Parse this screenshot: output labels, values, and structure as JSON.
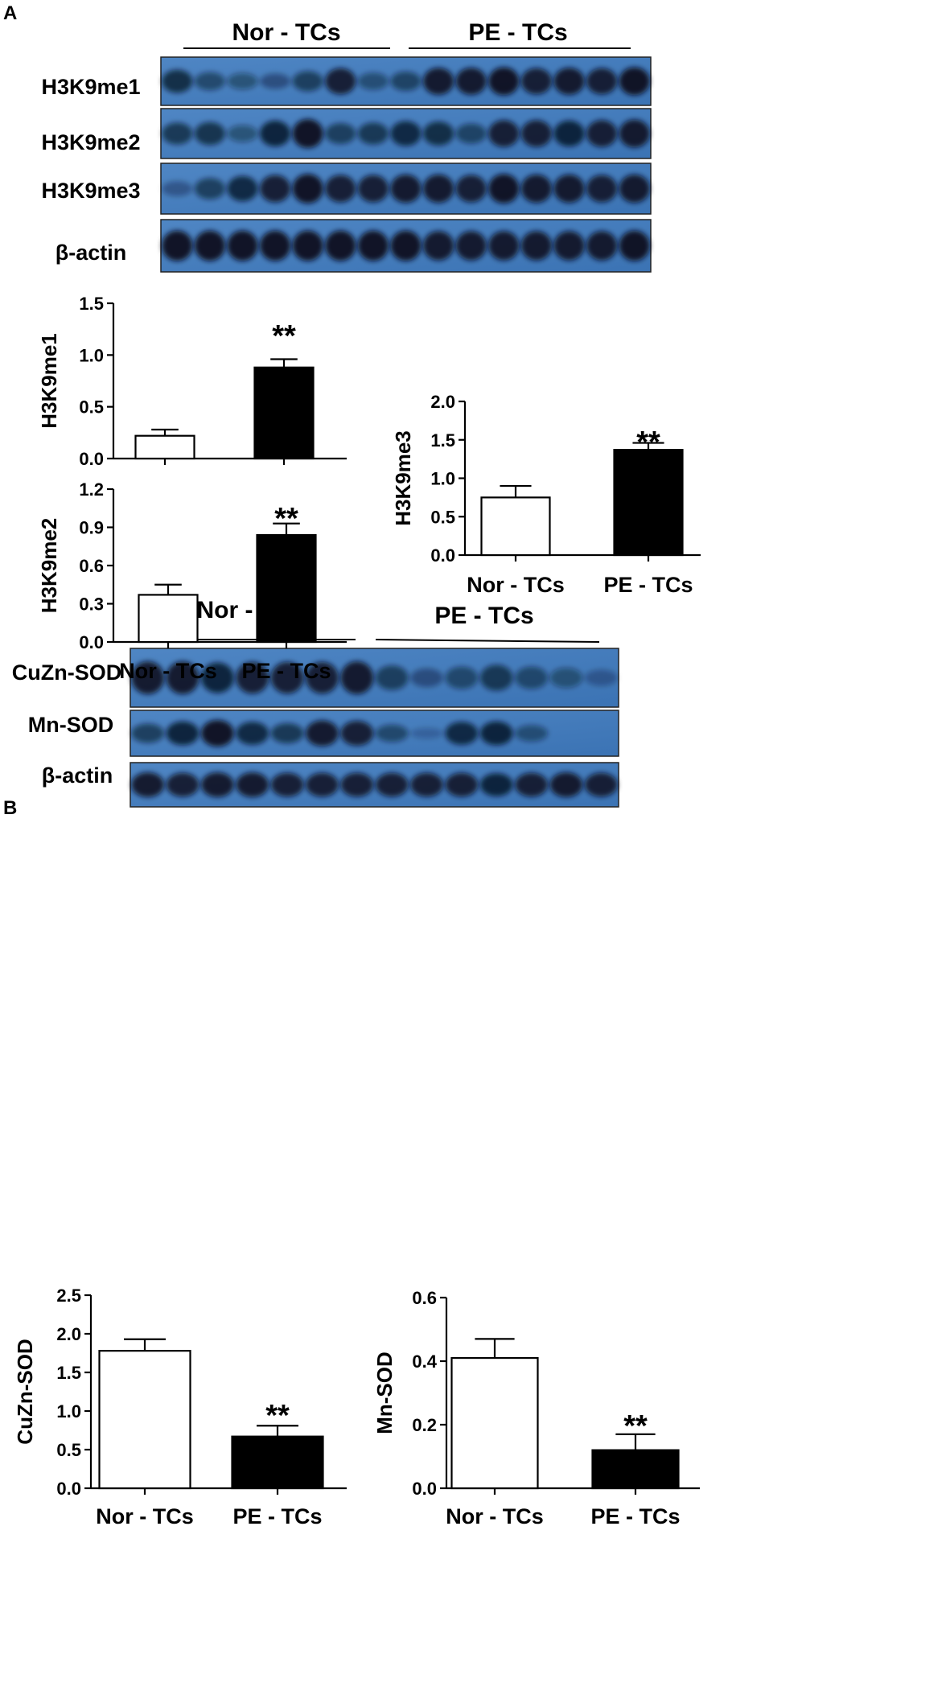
{
  "panels": [
    {
      "id": "A",
      "letter": "A",
      "blot": {
        "groups": [
          "Nor - TCs",
          "PE - TCs"
        ],
        "rows": [
          {
            "label": "H3K9me1",
            "intensity": [
              0.7,
              0.45,
              0.35,
              0.3,
              0.55,
              0.85,
              0.4,
              0.5,
              0.9,
              0.9,
              0.95,
              0.85,
              0.9,
              0.85,
              0.95
            ]
          },
          {
            "label": "H3K9me2",
            "intensity": [
              0.6,
              0.65,
              0.35,
              0.8,
              0.95,
              0.55,
              0.6,
              0.75,
              0.7,
              0.5,
              0.85,
              0.85,
              0.8,
              0.85,
              0.9
            ]
          },
          {
            "label": "H3K9me3",
            "intensity": [
              0.25,
              0.55,
              0.75,
              0.85,
              0.95,
              0.85,
              0.85,
              0.9,
              0.9,
              0.85,
              0.95,
              0.9,
              0.9,
              0.85,
              0.9
            ]
          },
          {
            "label": "β-actin",
            "intensity": [
              0.95,
              0.95,
              0.95,
              0.95,
              0.95,
              0.95,
              0.95,
              0.95,
              0.9,
              0.9,
              0.9,
              0.9,
              0.9,
              0.9,
              0.95
            ]
          }
        ]
      }
    },
    {
      "id": "B",
      "letter": "B",
      "blot": {
        "groups": [
          "Nor - TCs",
          "PE - TCs"
        ],
        "rows": [
          {
            "label": "CuZn-SOD",
            "intensity": [
              0.9,
              0.9,
              0.8,
              0.85,
              0.85,
              0.85,
              0.9,
              0.55,
              0.3,
              0.45,
              0.6,
              0.45,
              0.35,
              0.2
            ]
          },
          {
            "label": "Mn-SOD",
            "intensity": [
              0.55,
              0.8,
              0.95,
              0.75,
              0.6,
              0.9,
              0.85,
              0.45,
              0.1,
              0.75,
              0.8,
              0.4,
              0.0,
              0.0
            ]
          },
          {
            "label": "β-actin",
            "intensity": [
              0.9,
              0.85,
              0.9,
              0.9,
              0.85,
              0.85,
              0.85,
              0.85,
              0.85,
              0.85,
              0.8,
              0.85,
              0.9,
              0.85
            ]
          }
        ]
      }
    }
  ],
  "chart_data": [
    {
      "type": "bar",
      "panel": "A",
      "categories": [
        "Nor - TCs",
        "PE - TCs"
      ],
      "values": [
        0.22,
        0.88
      ],
      "errors": [
        0.06,
        0.08
      ],
      "ylabel": "H3K9me1",
      "ylim": [
        0,
        1.5
      ],
      "yticks": [
        "0.0",
        "0.5",
        "1.0",
        "1.5"
      ],
      "significance": "**",
      "colors": [
        "#ffffff",
        "#000000"
      ]
    },
    {
      "type": "bar",
      "panel": "A",
      "categories": [
        "Nor - TCs",
        "PE - TCs"
      ],
      "values": [
        0.37,
        0.84
      ],
      "errors": [
        0.08,
        0.09
      ],
      "ylabel": "H3K9me2",
      "ylim": [
        0,
        1.2
      ],
      "yticks": [
        "0.0",
        "0.3",
        "0.6",
        "0.9",
        "1.2"
      ],
      "significance": "**",
      "colors": [
        "#ffffff",
        "#000000"
      ]
    },
    {
      "type": "bar",
      "panel": "A",
      "categories": [
        "Nor - TCs",
        "PE - TCs"
      ],
      "values": [
        0.75,
        1.37
      ],
      "errors": [
        0.15,
        0.09
      ],
      "ylabel": "H3K9me3",
      "ylim": [
        0,
        2.0
      ],
      "yticks": [
        "0.0",
        "0.5",
        "1.0",
        "1.5",
        "2.0"
      ],
      "significance": "**",
      "colors": [
        "#ffffff",
        "#000000"
      ]
    },
    {
      "type": "bar",
      "panel": "B",
      "categories": [
        "Nor - TCs",
        "PE - TCs"
      ],
      "values": [
        1.78,
        0.67
      ],
      "errors": [
        0.15,
        0.14
      ],
      "ylabel": "CuZn-SOD",
      "ylim": [
        0,
        2.5
      ],
      "yticks": [
        "0.0",
        "0.5",
        "1.0",
        "1.5",
        "2.0",
        "2.5"
      ],
      "significance": "**",
      "colors": [
        "#ffffff",
        "#000000"
      ]
    },
    {
      "type": "bar",
      "panel": "B",
      "categories": [
        "Nor - TCs",
        "PE - TCs"
      ],
      "values": [
        0.41,
        0.12
      ],
      "errors": [
        0.06,
        0.05
      ],
      "ylabel": "Mn-SOD",
      "ylim": [
        0,
        0.6
      ],
      "yticks": [
        "0.0",
        "0.2",
        "0.4",
        "0.6"
      ],
      "significance": "**",
      "colors": [
        "#ffffff",
        "#000000"
      ]
    }
  ]
}
